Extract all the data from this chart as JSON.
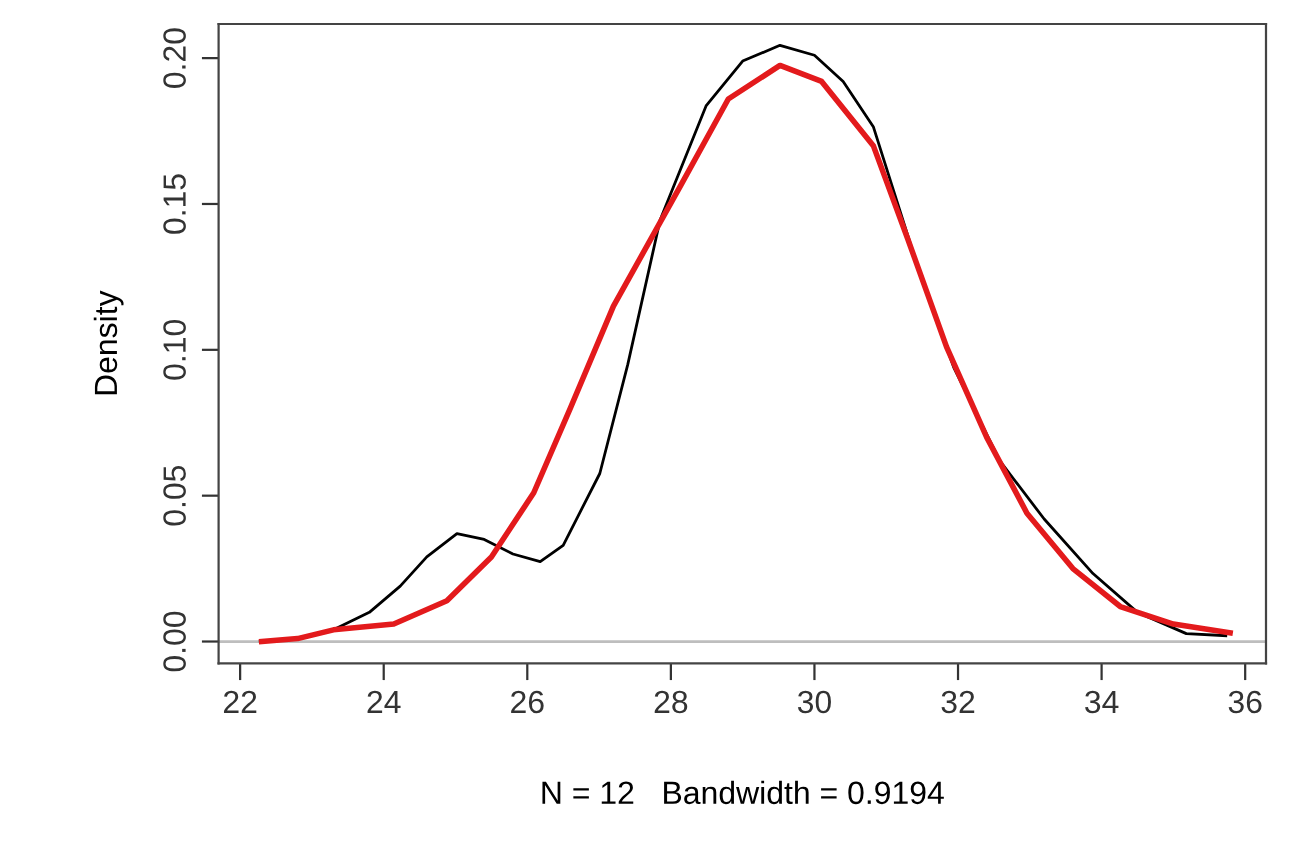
{
  "chart_data": {
    "type": "line",
    "xlabel": "N = 12   Bandwidth = 0.9194",
    "ylabel": "Density",
    "xlim": [
      21.7,
      36.29
    ],
    "ylim": [
      -0.0075,
      0.2117
    ],
    "xticks": [
      22,
      24,
      26,
      28,
      30,
      32,
      34,
      36
    ],
    "yticks": [
      {
        "value": 0,
        "label": "0.00"
      },
      {
        "value": 0.05,
        "label": "0.05"
      },
      {
        "value": 0.1,
        "label": "0.10"
      },
      {
        "value": 0.15,
        "label": "0.15"
      },
      {
        "value": 0.2,
        "label": "0.20"
      }
    ],
    "grid": false,
    "legend": false,
    "marker": "none",
    "line_style": "solid",
    "ref_lines": [
      {
        "axis": "y",
        "value": 0,
        "color": "#bebebe"
      }
    ],
    "series": [
      {
        "color": "#000000",
        "x": [
          22.28,
          22.8,
          23.3,
          23.8,
          24.23,
          24.6,
          25.02,
          25.4,
          25.8,
          26.18,
          26.5,
          27.01,
          27.4,
          27.85,
          28.49,
          29.0,
          29.52,
          30.0,
          30.4,
          30.82,
          31.47,
          31.94,
          32.58,
          33.2,
          33.88,
          34.5,
          35.18,
          35.73
        ],
        "values": [
          0.0,
          0.001,
          0.004,
          0.01,
          0.019,
          0.029,
          0.037,
          0.035,
          0.03,
          0.0274,
          0.033,
          0.0576,
          0.095,
          0.1445,
          0.1836,
          0.199,
          0.2044,
          0.201,
          0.192,
          0.1765,
          0.126,
          0.094,
          0.062,
          0.042,
          0.0233,
          0.01,
          0.0027,
          0.002
        ]
      },
      {
        "color": "#e31a1c",
        "x": [
          22.3,
          22.8,
          23.3,
          24.14,
          24.88,
          25.5,
          26.09,
          26.6,
          27.2,
          28.13,
          28.8,
          29.52,
          30.1,
          30.82,
          31.3,
          31.84,
          32.4,
          32.96,
          33.6,
          34.26,
          35.0,
          35.79
        ],
        "values": [
          0.0,
          0.001,
          0.004,
          0.006,
          0.014,
          0.029,
          0.051,
          0.08,
          0.115,
          0.156,
          0.186,
          0.1975,
          0.192,
          0.17,
          0.138,
          0.101,
          0.07,
          0.044,
          0.025,
          0.012,
          0.006,
          0.003
        ]
      }
    ]
  }
}
